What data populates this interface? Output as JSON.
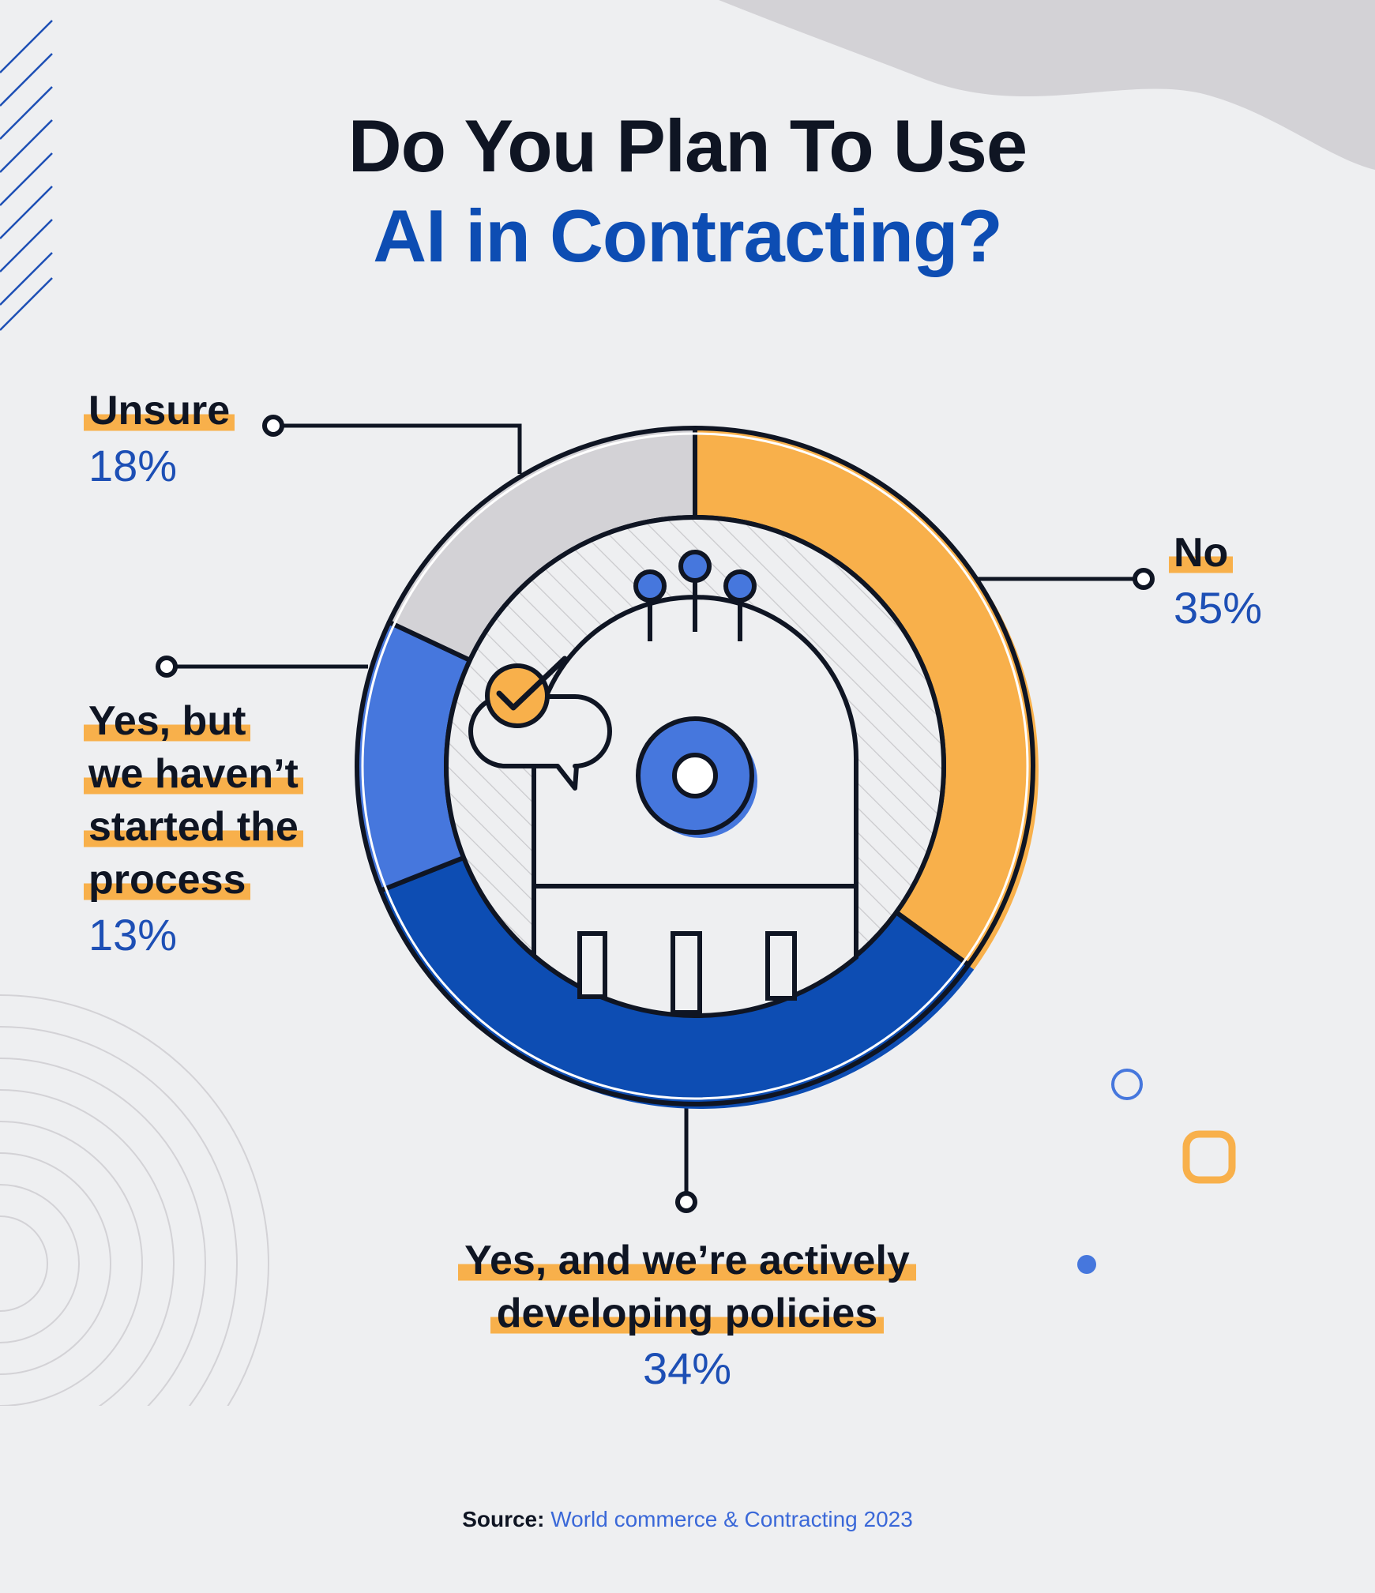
{
  "title": {
    "line1": "Do You Plan To Use",
    "line2": "AI in Contracting?"
  },
  "source": {
    "label": "Source:",
    "text": "World commerce & Contracting 2023"
  },
  "colors": {
    "no": "#f8b04b",
    "actively": "#0d4db3",
    "not_started": "#4677dd",
    "unsure": "#d3d2d6",
    "outline": "#0f1523",
    "background": "#eeeff1"
  },
  "chart_data": {
    "type": "pie",
    "style": "donut",
    "title": "Do You Plan To Use AI in Contracting?",
    "unit": "%",
    "slices": [
      {
        "key": "no",
        "label": "No",
        "value": 35,
        "display": "35%",
        "color": "#f8b04b"
      },
      {
        "key": "actively",
        "label": "Yes, and we’re actively developing policies",
        "lines": [
          "Yes, and we’re actively",
          "developing policies"
        ],
        "value": 34,
        "display": "34%",
        "color": "#0d4db3"
      },
      {
        "key": "not_started",
        "label": "Yes, but we haven’t started the process",
        "lines": [
          "Yes, but",
          "we haven’t",
          "started the",
          "process"
        ],
        "value": 13,
        "display": "13%",
        "color": "#4677dd"
      },
      {
        "key": "unsure",
        "label": "Unsure",
        "lines": [
          "Unsure"
        ],
        "value": 18,
        "display": "18%",
        "color": "#d3d2d6"
      }
    ],
    "start_angle": "top",
    "direction": "clockwise",
    "legend": "none",
    "source": "World commerce & Contracting 2023"
  }
}
